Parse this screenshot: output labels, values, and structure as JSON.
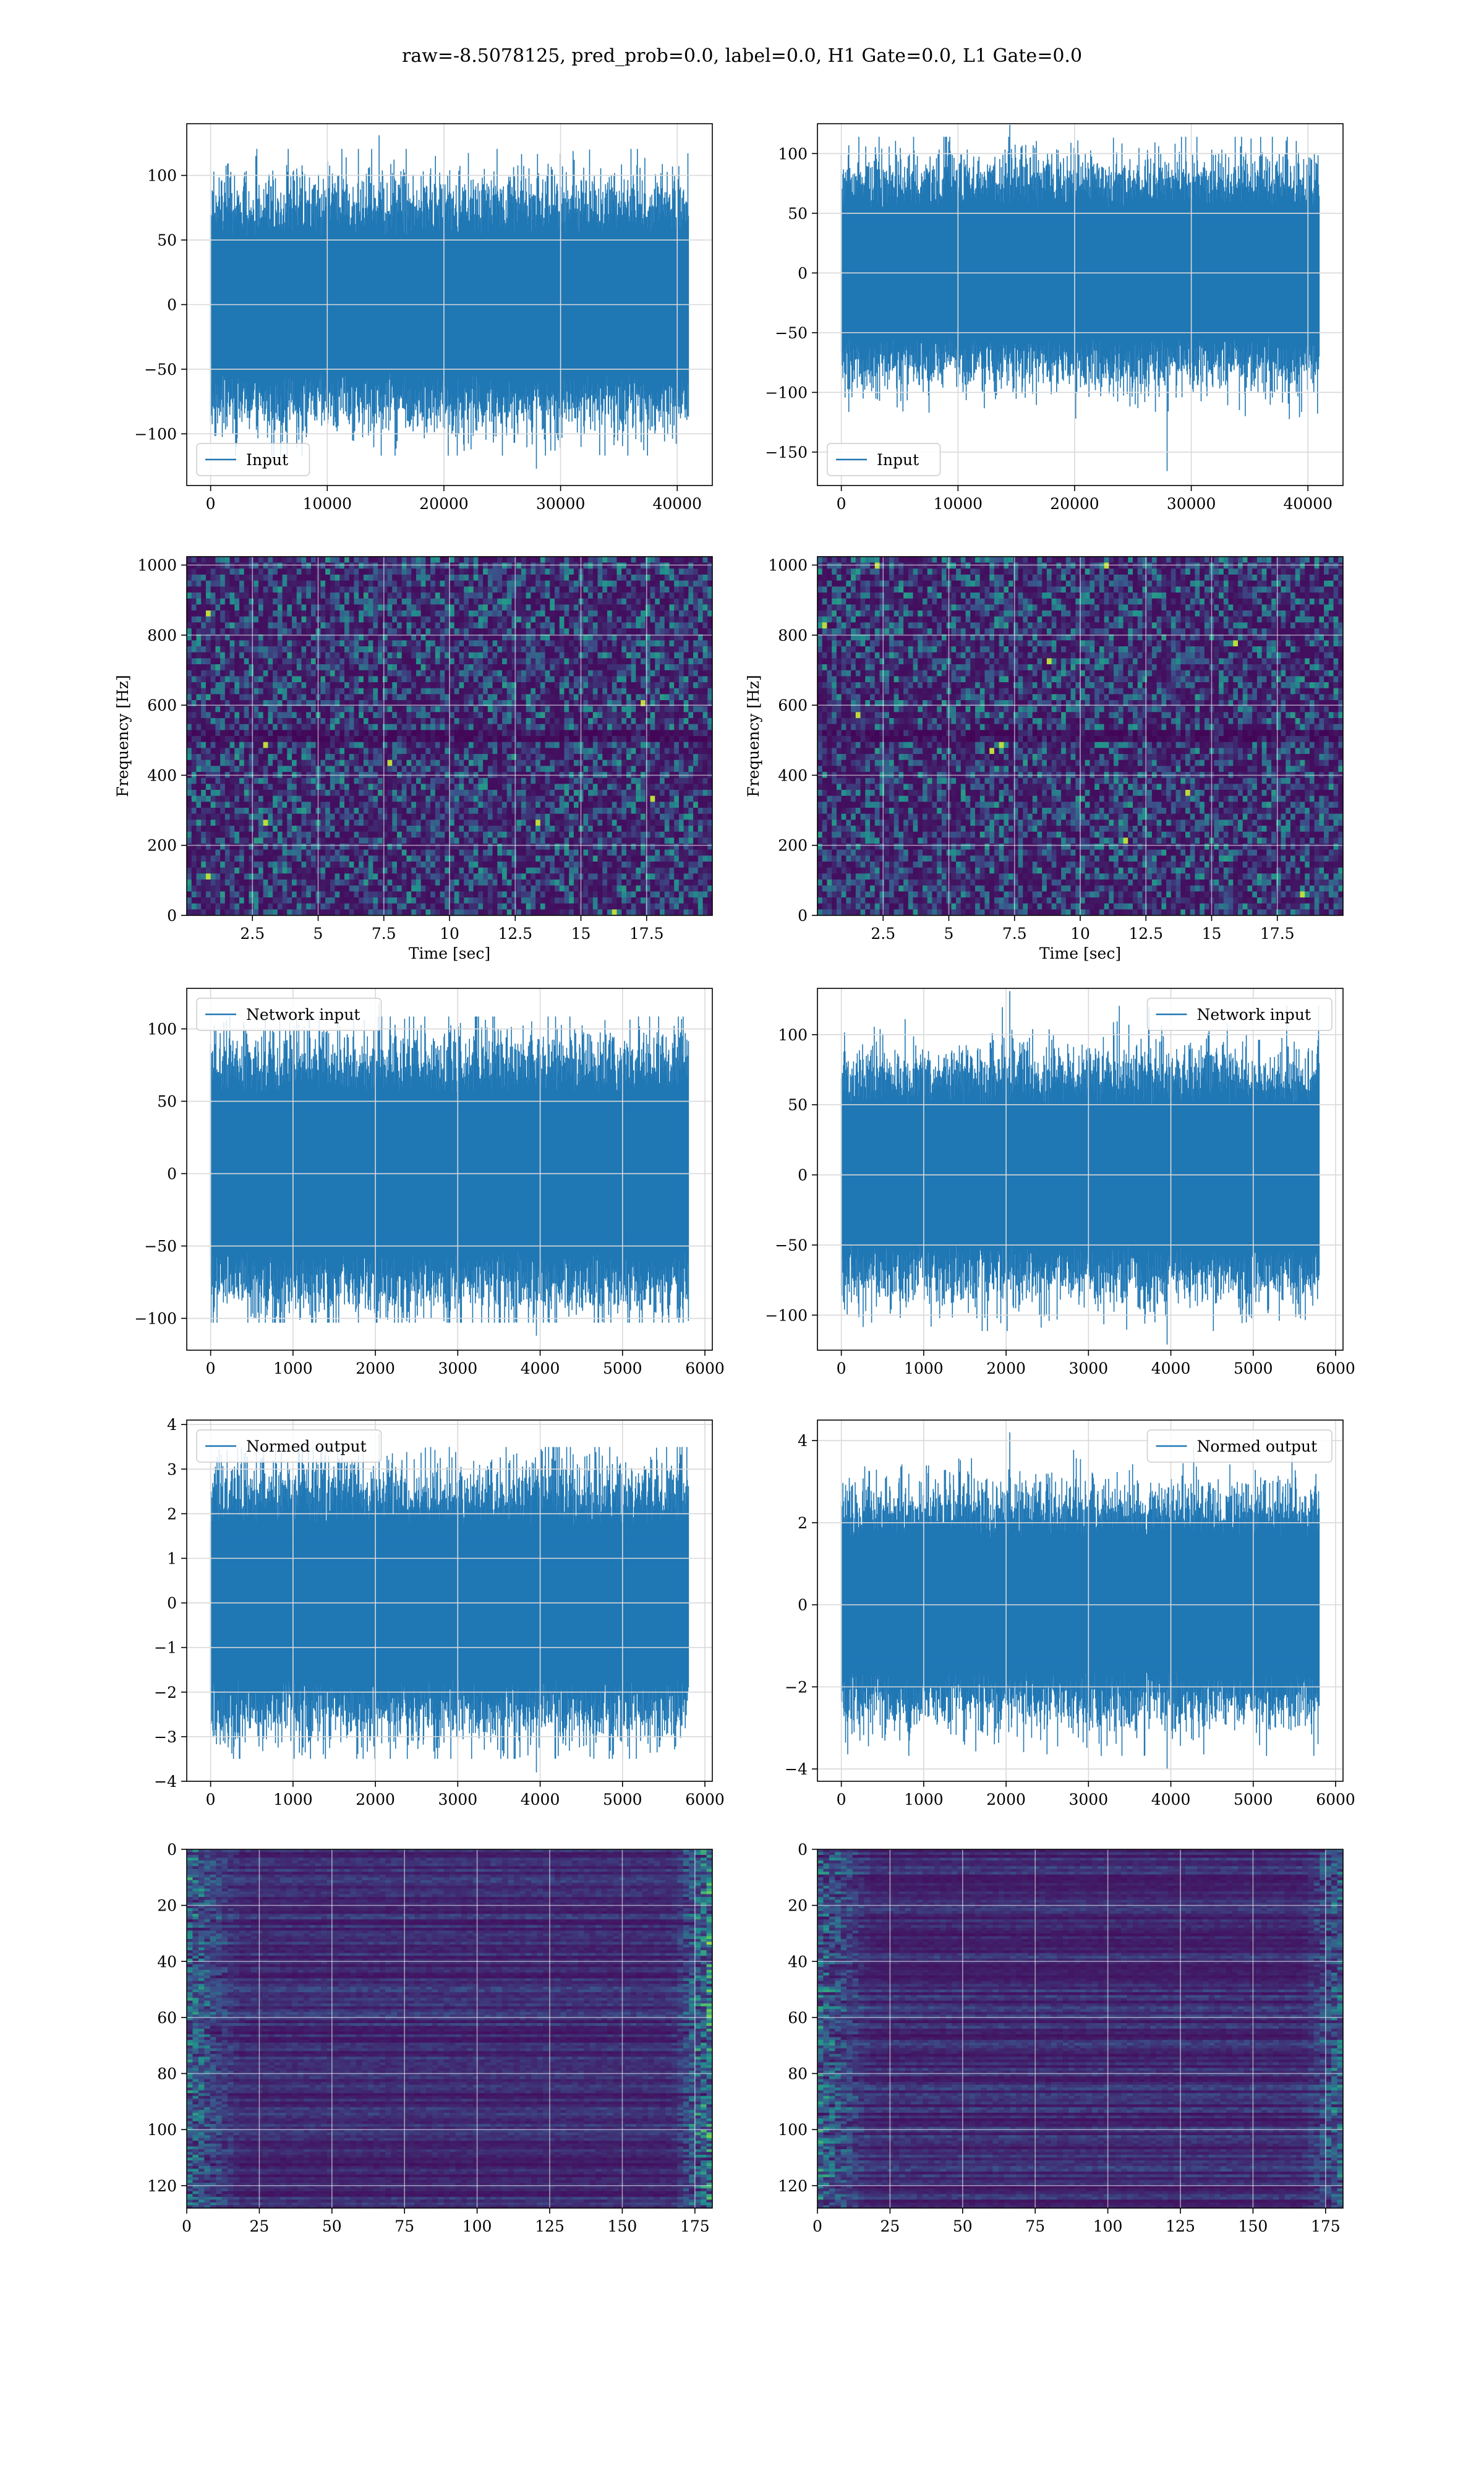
{
  "figure": {
    "title": "raw=-8.5078125, pred_prob=0.0, label=0.0, H1 Gate=0.0, L1 Gate=0.0"
  },
  "chart_data": [
    {
      "id": "input-h1",
      "type": "line",
      "legend": "Input",
      "legend_loc": "lower-left",
      "xlim": [
        -2048,
        43008
      ],
      "ylim": [
        -140,
        140
      ],
      "xticks": [
        0,
        10000,
        20000,
        30000,
        40000
      ],
      "yticks": [
        -100,
        -50,
        0,
        50,
        100
      ],
      "grid": true,
      "color": "#1f77b4",
      "signal": {
        "n": 40960,
        "amplitude": 28,
        "peak_max": 131,
        "peak_min": -127
      }
    },
    {
      "id": "input-l1",
      "type": "line",
      "legend": "Input",
      "legend_loc": "lower-left",
      "xlim": [
        -2048,
        43008
      ],
      "ylim": [
        -178,
        125
      ],
      "xticks": [
        0,
        10000,
        20000,
        30000,
        40000
      ],
      "yticks": [
        -150,
        -100,
        -50,
        0,
        50,
        100
      ],
      "grid": true,
      "color": "#1f77b4",
      "signal": {
        "n": 40960,
        "amplitude": 28,
        "peak_max": 124,
        "peak_min": -166
      }
    },
    {
      "id": "spectrogram-h1",
      "type": "heatmap",
      "xlabel": "Time [sec]",
      "ylabel": "Frequency [Hz]",
      "xlim": [
        0,
        20
      ],
      "ylim": [
        0,
        1024
      ],
      "xticks": [
        2.5,
        5.0,
        7.5,
        10.0,
        12.5,
        15.0,
        17.5
      ],
      "yticks": [
        0,
        200,
        400,
        600,
        800,
        1000
      ],
      "grid": true,
      "colormap": "viridis"
    },
    {
      "id": "spectrogram-l1",
      "type": "heatmap",
      "xlabel": "Time [sec]",
      "ylabel": "Frequency [Hz]",
      "xlim": [
        0,
        20
      ],
      "ylim": [
        0,
        1024
      ],
      "xticks": [
        2.5,
        5.0,
        7.5,
        10.0,
        12.5,
        15.0,
        17.5
      ],
      "yticks": [
        0,
        200,
        400,
        600,
        800,
        1000
      ],
      "grid": true,
      "colormap": "viridis"
    },
    {
      "id": "network-input-h1",
      "type": "line",
      "legend": "Network input",
      "legend_loc": "upper-left",
      "xlim": [
        -290,
        6090
      ],
      "ylim": [
        -122,
        128
      ],
      "xticks": [
        0,
        1000,
        2000,
        3000,
        4000,
        5000,
        6000
      ],
      "yticks": [
        -100,
        -50,
        0,
        50,
        100
      ],
      "grid": true,
      "color": "#1f77b4",
      "signal": {
        "n": 5800,
        "amplitude": 28,
        "peak_max": 118,
        "peak_min": -112
      }
    },
    {
      "id": "network-input-l1",
      "type": "line",
      "legend": "Network input",
      "legend_loc": "upper-right",
      "xlim": [
        -290,
        6090
      ],
      "ylim": [
        -125,
        133
      ],
      "xticks": [
        0,
        1000,
        2000,
        3000,
        4000,
        5000,
        6000
      ],
      "yticks": [
        -100,
        -50,
        0,
        50,
        100
      ],
      "grid": true,
      "color": "#1f77b4",
      "signal": {
        "n": 5800,
        "amplitude": 26,
        "peak_max": 131,
        "peak_min": -121
      }
    },
    {
      "id": "normed-output-h1",
      "type": "line",
      "legend": "Normed output",
      "legend_loc": "upper-left",
      "xlim": [
        -290,
        6090
      ],
      "ylim": [
        -4,
        4.1
      ],
      "xticks": [
        0,
        1000,
        2000,
        3000,
        4000,
        5000,
        6000
      ],
      "yticks": [
        -4,
        -3,
        -2,
        -1,
        0,
        1,
        2,
        3,
        4
      ],
      "grid": true,
      "color": "#1f77b4",
      "signal": {
        "n": 5800,
        "amplitude": 0.9,
        "peak_max": 3.8,
        "peak_min": -3.8
      }
    },
    {
      "id": "normed-output-l1",
      "type": "line",
      "legend": "Normed output",
      "legend_loc": "upper-right",
      "xlim": [
        -290,
        6090
      ],
      "ylim": [
        -4.3,
        4.5
      ],
      "xticks": [
        0,
        1000,
        2000,
        3000,
        4000,
        5000,
        6000
      ],
      "yticks": [
        -4,
        -2,
        0,
        2,
        4
      ],
      "grid": true,
      "color": "#1f77b4",
      "signal": {
        "n": 5800,
        "amplitude": 0.85,
        "peak_max": 4.2,
        "peak_min": -4.0
      }
    },
    {
      "id": "feature-map-h1",
      "type": "heatmap",
      "xlim": [
        0,
        181
      ],
      "ylim": [
        128,
        0
      ],
      "xticks": [
        0,
        25,
        50,
        75,
        100,
        125,
        150,
        175
      ],
      "yticks": [
        0,
        20,
        40,
        60,
        80,
        100,
        120
      ],
      "grid": true,
      "colormap": "viridis"
    },
    {
      "id": "feature-map-l1",
      "type": "heatmap",
      "xlim": [
        0,
        181
      ],
      "ylim": [
        128,
        0
      ],
      "xticks": [
        0,
        25,
        50,
        75,
        100,
        125,
        150,
        175
      ],
      "yticks": [
        0,
        20,
        40,
        60,
        80,
        100,
        120
      ],
      "grid": true,
      "colormap": "viridis"
    }
  ]
}
